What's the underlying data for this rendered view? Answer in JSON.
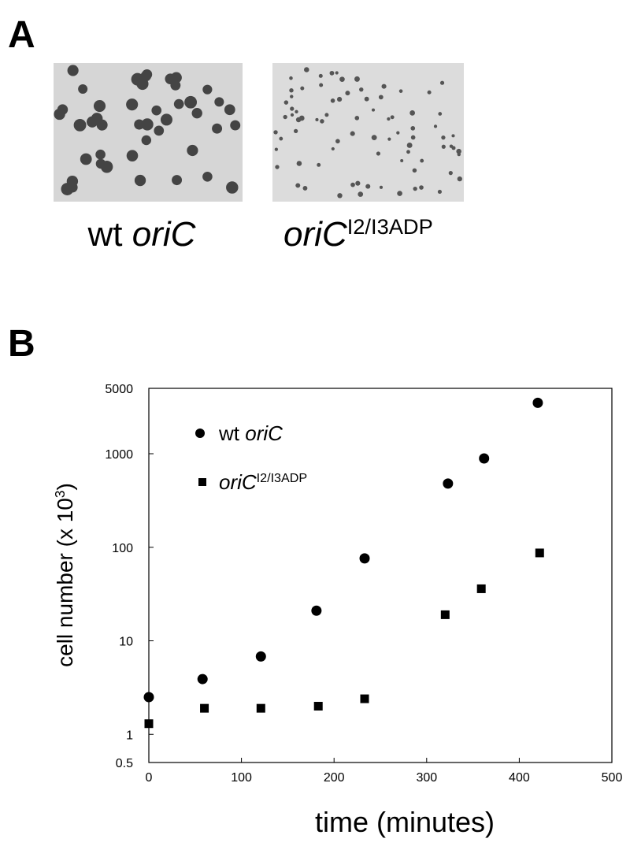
{
  "panel_a": {
    "letter": "A",
    "captions": [
      [
        {
          "text": "wt "
        },
        {
          "text": "oriC",
          "style": "italic"
        }
      ],
      [
        {
          "text": "oriC",
          "style": "italic"
        },
        {
          "text": "I2/I3ADP",
          "style": "sup"
        }
      ]
    ]
  },
  "chart_data": {
    "type": "scatter",
    "letter": "B",
    "xlabel": [
      {
        "text": "time (minutes)"
      }
    ],
    "ylabel": [
      {
        "text": "cell number (x 10"
      },
      {
        "text": "3",
        "style": "sup"
      },
      {
        "text": ")"
      }
    ],
    "xlim": [
      0,
      500
    ],
    "xticks": [
      0,
      100,
      200,
      300,
      400,
      500
    ],
    "ylim": [
      0.5,
      5000
    ],
    "yticks": [
      0.5,
      1,
      10,
      100,
      1000,
      5000
    ],
    "ylog": true,
    "series": [
      {
        "name": [
          {
            "text": "wt "
          },
          {
            "text": "oriC",
            "style": "italic"
          }
        ],
        "marker": "circle",
        "color": "#000000",
        "x": [
          0,
          58,
          121,
          181,
          233,
          323,
          362,
          420
        ],
        "values": [
          2.5,
          3.9,
          6.8,
          21,
          76,
          480,
          890,
          3500
        ]
      },
      {
        "name": [
          {
            "text": "oriC",
            "style": "italic"
          },
          {
            "text": "I2/I3ADP",
            "style": "sup"
          }
        ],
        "marker": "square",
        "color": "#000000",
        "x": [
          0,
          60,
          121,
          183,
          233,
          320,
          359,
          422
        ],
        "values": [
          1.3,
          1.9,
          1.9,
          2.0,
          2.4,
          19,
          36,
          87
        ]
      }
    ]
  }
}
